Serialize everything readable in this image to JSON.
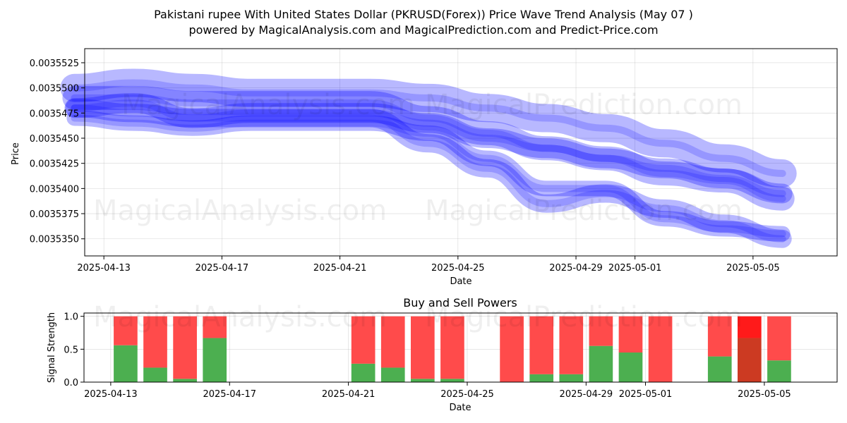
{
  "title_line1": "Pakistani rupee With United States Dollar (PKRUSD(Forex)) Price Wave Trend Analysis (May 07 )",
  "title_line2": "powered by MagicalAnalysis.com and MagicalPrediction.com and Predict-Price.com",
  "watermarks": [
    "MagicalAnalysis.com",
    "MagicalPrediction.com"
  ],
  "chart_data": [
    {
      "type": "area",
      "title": "",
      "xlabel": "Date",
      "ylabel": "Price",
      "x_ticks": [
        "2025-04-13",
        "2025-04-17",
        "2025-04-21",
        "2025-04-25",
        "2025-04-29",
        "2025-05-01",
        "2025-05-05"
      ],
      "y_ticks": [
        "0.0035350",
        "0.0035375",
        "0.0035400",
        "0.0035425",
        "0.0035450",
        "0.0035475",
        "0.0035500",
        "0.0035525"
      ],
      "xlim": [
        "2025-04-12",
        "2025-05-07"
      ],
      "ylim": [
        0.0035333,
        0.0035539
      ],
      "grid": true,
      "color": "#0000ff",
      "series": [
        {
          "x": [
            "2025-04-12",
            "2025-04-14",
            "2025-04-16",
            "2025-04-18",
            "2025-04-22",
            "2025-04-24",
            "2025-04-26",
            "2025-04-28",
            "2025-04-30",
            "2025-05-02",
            "2025-05-04",
            "2025-05-06"
          ],
          "values": [
            0.003548,
            0.0035485,
            0.003547,
            0.0035475,
            0.0035475,
            0.0035465,
            0.003545,
            0.003544,
            0.003543,
            0.003542,
            0.003541,
            0.0035395
          ]
        },
        {
          "x": [
            "2025-04-12",
            "2025-04-14",
            "2025-04-16",
            "2025-04-18",
            "2025-04-22",
            "2025-04-24",
            "2025-04-26",
            "2025-04-28",
            "2025-04-30",
            "2025-05-02",
            "2025-05-04",
            "2025-05-06"
          ],
          "values": [
            0.003549,
            0.003549,
            0.0035485,
            0.0035485,
            0.0035485,
            0.003547,
            0.0035455,
            0.003544,
            0.003543,
            0.0035415,
            0.0035408,
            0.003539
          ]
        },
        {
          "x": [
            "2025-04-12",
            "2025-04-14",
            "2025-04-16",
            "2025-04-18",
            "2025-04-22",
            "2025-04-24",
            "2025-04-26",
            "2025-04-28",
            "2025-04-30",
            "2025-05-02",
            "2025-05-04",
            "2025-05-06"
          ],
          "values": [
            0.003547,
            0.0035465,
            0.003546,
            0.0035465,
            0.0035465,
            0.0035455,
            0.003543,
            0.00354,
            0.00354,
            0.003537,
            0.003536,
            0.0035355
          ]
        },
        {
          "x": [
            "2025-04-12",
            "2025-04-14",
            "2025-04-16",
            "2025-04-18",
            "2025-04-22",
            "2025-04-24",
            "2025-04-26",
            "2025-04-28",
            "2025-04-30",
            "2025-05-02",
            "2025-05-04",
            "2025-05-06"
          ],
          "values": [
            0.003548,
            0.0035475,
            0.003547,
            0.003547,
            0.003547,
            0.0035445,
            0.003542,
            0.0035385,
            0.0035395,
            0.003538,
            0.0035365,
            0.003535
          ]
        },
        {
          "x": [
            "2025-04-12",
            "2025-04-14",
            "2025-04-16",
            "2025-04-18",
            "2025-04-22",
            "2025-04-24",
            "2025-04-26",
            "2025-04-28",
            "2025-04-30",
            "2025-05-02",
            "2025-05-04",
            "2025-05-06"
          ],
          "values": [
            0.00355,
            0.0035505,
            0.00355,
            0.0035495,
            0.0035495,
            0.003549,
            0.003548,
            0.003547,
            0.003546,
            0.0035445,
            0.003543,
            0.0035415
          ]
        }
      ]
    },
    {
      "type": "bar",
      "title": "Buy and Sell Powers",
      "xlabel": "Date",
      "ylabel": "Signal Strength",
      "x_ticks": [
        "2025-04-13",
        "2025-04-17",
        "2025-04-21",
        "2025-04-25",
        "2025-04-29",
        "2025-05-01",
        "2025-05-05"
      ],
      "y_ticks": [
        "0.0",
        "0.5",
        "1.0"
      ],
      "ylim": [
        0,
        1.05
      ],
      "grid": true,
      "categories": [
        "2025-04-14",
        "2025-04-15",
        "2025-04-16",
        "2025-04-17",
        "2025-04-22",
        "2025-04-23",
        "2025-04-24",
        "2025-04-25",
        "2025-04-27",
        "2025-04-28",
        "2025-04-29",
        "2025-04-30",
        "2025-05-01",
        "2025-05-02",
        "2025-05-04",
        "2025-05-05",
        "2025-05-06"
      ],
      "series": [
        {
          "name": "Buy",
          "color": "#4caf50",
          "values": [
            0.56,
            0.22,
            0.05,
            0.67,
            0.28,
            0.22,
            0.05,
            0.05,
            0.0,
            0.12,
            0.12,
            0.55,
            0.45,
            0.0,
            0.39,
            0.67,
            0.33
          ]
        },
        {
          "name": "Sell",
          "color": "#ff4b4b",
          "values": [
            0.44,
            0.78,
            0.95,
            0.33,
            0.72,
            0.78,
            0.95,
            0.95,
            1.0,
            0.88,
            0.88,
            0.45,
            0.55,
            1.0,
            0.61,
            0.33,
            0.67
          ]
        }
      ],
      "highlight": {
        "category": "2025-05-05",
        "buy_color": "#cc3a22",
        "sell_color": "#ff1a1a"
      }
    }
  ]
}
